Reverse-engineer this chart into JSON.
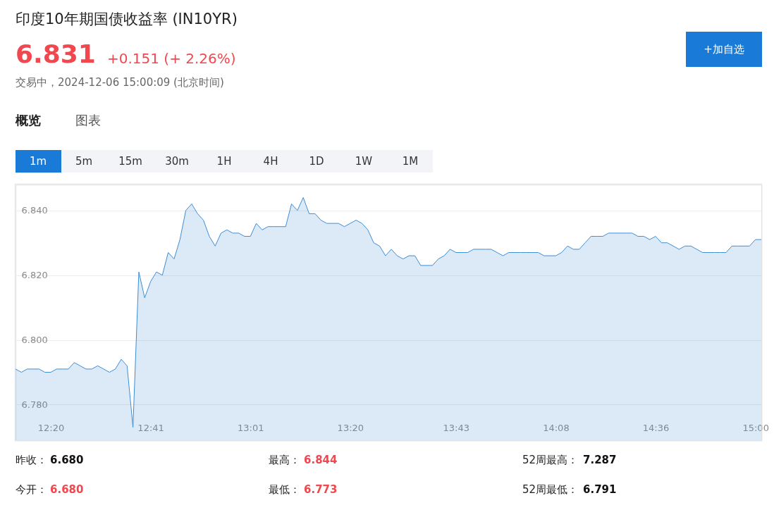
{
  "chart_data": {
    "type": "area",
    "title": "印度10年期国债收益率 (IN10YR)",
    "annotations": [
      "6.831",
      "+0.151 (+ 2.26%)",
      "交易中，2024-12-06 15:00:09 (北京时间)",
      "+加自选",
      "概览",
      "图表",
      "1m",
      "5m",
      "15m",
      "30m",
      "1H",
      "4H",
      "1D",
      "1W",
      "1M",
      "昨收：",
      "6.680",
      "最高：",
      "6.844",
      "52周最高：",
      "7.287",
      "今开：",
      "6.680",
      "最低：",
      "6.773",
      "52周最低：",
      "6.791"
    ],
    "categories": [
      null,
      null,
      null,
      null,
      null,
      null,
      "12:20",
      null,
      null,
      null,
      null,
      null,
      null,
      null,
      null,
      null,
      null,
      null,
      null,
      null,
      null,
      null,
      null,
      "12:41",
      null,
      null,
      null,
      null,
      null,
      null,
      null,
      null,
      null,
      null,
      null,
      null,
      null,
      null,
      null,
      null,
      "13:01",
      null,
      null,
      null,
      null,
      null,
      null,
      null,
      null,
      null,
      null,
      null,
      null,
      null,
      null,
      null,
      null,
      "13:20",
      null,
      null,
      null,
      null,
      null,
      null,
      null,
      null,
      null,
      null,
      null,
      null,
      null,
      null,
      null,
      null,
      null,
      "13:43",
      null,
      null,
      null,
      null,
      null,
      null,
      null,
      null,
      null,
      null,
      null,
      null,
      null,
      null,
      null,
      null,
      "14:08",
      null,
      null,
      null,
      null,
      null,
      null,
      null,
      null,
      null,
      null,
      null,
      null,
      null,
      null,
      null,
      null,
      "14:36",
      null,
      null,
      null,
      null,
      null,
      null,
      null,
      null,
      null,
      null,
      null,
      null,
      null,
      null,
      null,
      null,
      "15:00",
      null
    ],
    "series": [
      {
        "color": "#3c8dd6",
        "values": [
          6.791,
          6.79,
          6.791,
          6.791,
          6.791,
          6.79,
          6.79,
          6.791,
          6.791,
          6.791,
          6.793,
          6.792,
          6.791,
          6.791,
          6.792,
          6.791,
          6.79,
          6.791,
          6.794,
          6.792,
          6.773,
          6.821,
          6.813,
          6.818,
          6.821,
          6.82,
          6.827,
          6.825,
          6.831,
          6.84,
          6.842,
          6.839,
          6.837,
          6.832,
          6.829,
          6.833,
          6.834,
          6.833,
          6.833,
          6.832,
          6.832,
          6.836,
          6.834,
          6.835,
          6.835,
          6.835,
          6.835,
          6.842,
          6.84,
          6.844,
          6.839,
          6.839,
          6.837,
          6.836,
          6.836,
          6.836,
          6.835,
          6.836,
          6.837,
          6.836,
          6.834,
          6.83,
          6.829,
          6.826,
          6.828,
          6.826,
          6.825,
          6.826,
          6.826,
          6.823,
          6.823,
          6.823,
          6.825,
          6.826,
          6.828,
          6.827,
          6.827,
          6.827,
          6.828,
          6.828,
          6.828,
          6.828,
          6.827,
          6.826,
          6.827,
          6.827,
          6.827,
          6.827,
          6.827,
          6.827,
          6.826,
          6.826,
          6.826,
          6.827,
          6.829,
          6.828,
          6.828,
          6.83,
          6.832,
          6.832,
          6.832,
          6.833,
          6.833,
          6.833,
          6.833,
          6.833,
          6.832,
          6.832,
          6.831,
          6.832,
          6.83,
          6.83,
          6.829,
          6.828,
          6.829,
          6.829,
          6.828,
          6.827,
          6.827,
          6.827,
          6.827,
          6.827,
          6.829,
          6.829,
          6.829,
          6.829,
          6.831,
          6.831
        ]
      }
    ],
    "ylim": [
      6.769,
      6.848
    ],
    "yticks": [
      {
        "value": 6.78,
        "label": "6.780"
      },
      {
        "value": 6.8,
        "label": "6.800"
      },
      {
        "value": 6.82,
        "label": "6.820"
      },
      {
        "value": 6.84,
        "label": "6.840"
      }
    ],
    "grid": "y"
  }
}
